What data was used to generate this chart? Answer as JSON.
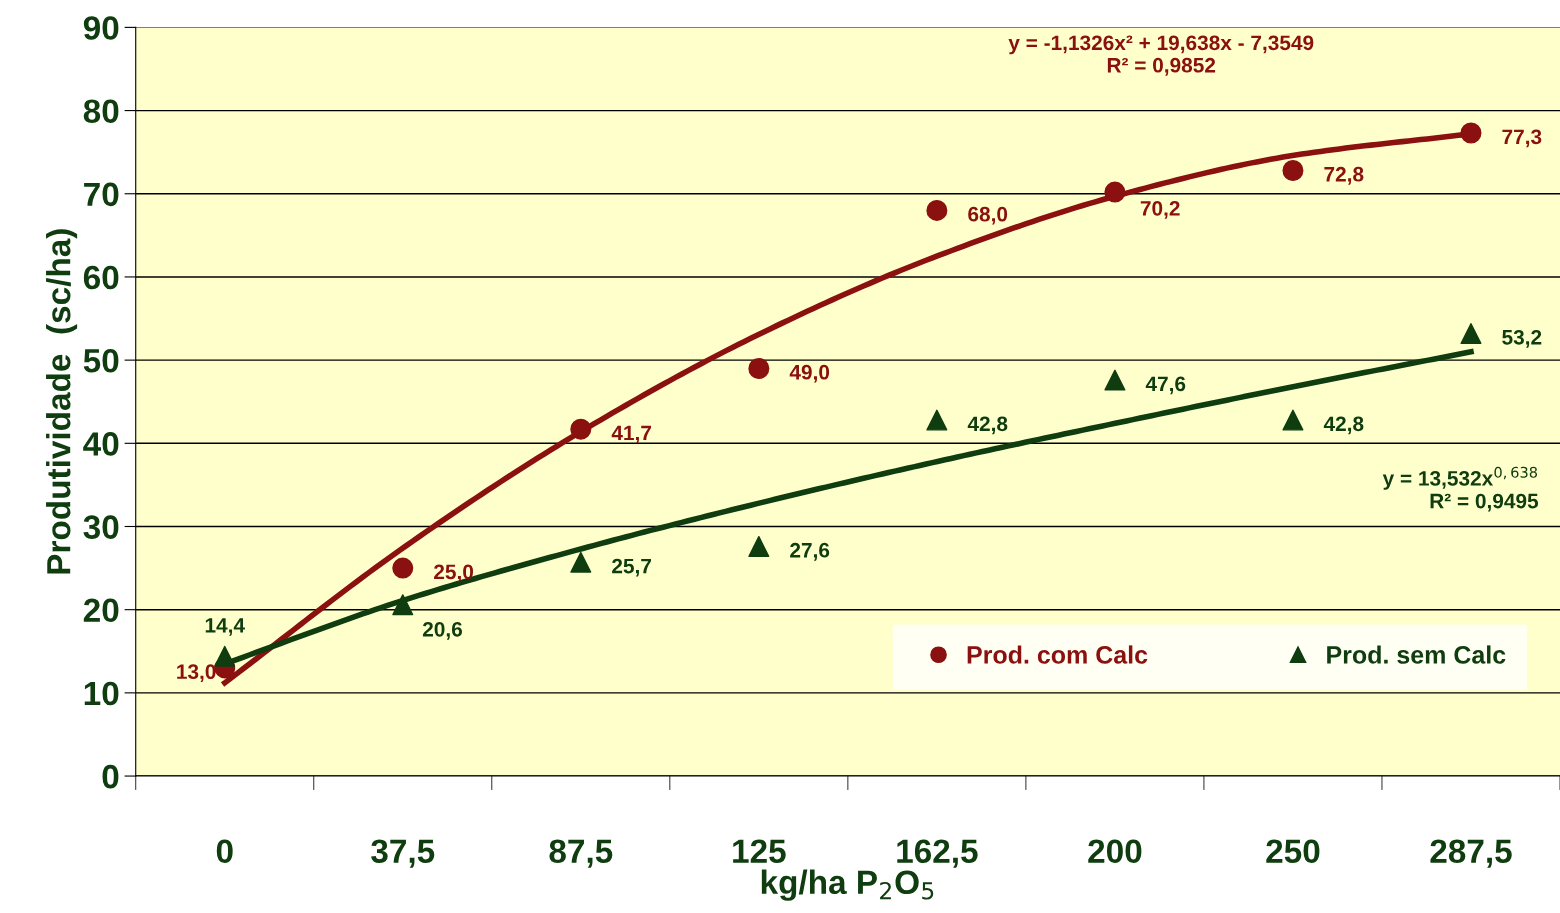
{
  "chart_data": {
    "type": "scatter",
    "xlabel": "kg/ha P$_{2}$O$_{5}$",
    "ylabel": "Produtividade  (sc/ha)",
    "categories": [
      "0",
      "37,5",
      "87,5",
      "125",
      "162,5",
      "200",
      "250",
      "287,5"
    ],
    "ylim": [
      0,
      90
    ],
    "yticks": [
      0,
      10,
      20,
      30,
      40,
      50,
      60,
      70,
      80,
      90
    ],
    "grid": "y",
    "legend": "bottom right",
    "series": [
      {
        "name": "Prod. com Calc",
        "marker": "circle",
        "color": "#8b1010",
        "values": [
          13.0,
          25.0,
          41.7,
          49.0,
          68.0,
          70.2,
          72.8,
          77.3
        ],
        "value_labels": [
          "13,0",
          "25,0",
          "41,7",
          "49,0",
          "68,0",
          "70,2",
          "72,8",
          "77,3"
        ]
      },
      {
        "name": "Prod. sem Calc",
        "marker": "triangle",
        "color": "#0f3d0f",
        "values": [
          14.4,
          20.6,
          25.7,
          27.6,
          42.8,
          47.6,
          42.8,
          53.2
        ],
        "value_labels": [
          "14,4",
          "20,6",
          "25,7",
          "27,6",
          "42,8",
          "47,6",
          "42,8",
          "53,2"
        ]
      },
      {
        "type": "line",
        "marker": "none",
        "color": "#8b1010",
        "values": [
          11.2,
          27.4,
          41.4,
          53.1,
          62.5,
          69.7,
          74.6,
          77.2
        ]
      },
      {
        "type": "line",
        "marker": "none",
        "color": "#0f3d0f",
        "values": [
          13.5,
          21.1,
          27.3,
          32.8,
          37.8,
          42.4,
          46.8,
          51.0
        ]
      }
    ],
    "annotations": [
      "y = -1,1326x² + 19,638x - 7,3549\nR² = 0,9852",
      "y = 13,532x$^{0,638}$\nR² = 0,9495"
    ]
  }
}
